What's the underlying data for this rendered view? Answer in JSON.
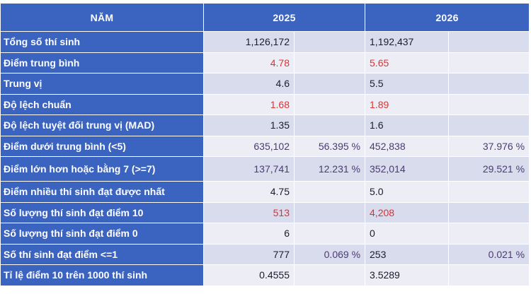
{
  "header": {
    "col_label": "NĂM",
    "col_2025": "2025",
    "col_2026": "2026"
  },
  "rows": [
    {
      "label": "Tổng số thí sinh",
      "v2025": "1,126,172",
      "p2025": "",
      "v2026": "1,192,437",
      "p2026": "",
      "highlight": false
    },
    {
      "label": "Điểm trung bình",
      "v2025": "4.78",
      "p2025": "",
      "v2026": "5.65",
      "p2026": "",
      "highlight": true
    },
    {
      "label": "Trung vị",
      "v2025": "4.6",
      "p2025": "",
      "v2026": "5.5",
      "p2026": "",
      "highlight": false
    },
    {
      "label": "Độ lệch chuẩn",
      "v2025": "1.68",
      "p2025": "",
      "v2026": "1.89",
      "p2026": "",
      "highlight": true
    },
    {
      "label": "Độ lệch tuyệt đối trung vị (MAD)",
      "v2025": "1.35",
      "p2025": "",
      "v2026": "1.6",
      "p2026": "",
      "highlight": false
    },
    {
      "label": "Điểm dưới trung bình (<5)",
      "v2025": "635,102",
      "p2025": "56.395 %",
      "v2026": "452,838",
      "p2026": "37.976 %",
      "highlight": false
    },
    {
      "label": "Điểm lớn hơn hoặc bằng 7 (>=7)",
      "v2025": "137,741",
      "p2025": "12.231 %",
      "v2026": "352,014",
      "p2026": "29.521 %",
      "highlight": false
    },
    {
      "label": "Điểm nhiều thí sinh đạt được nhất",
      "v2025": "4.75",
      "p2025": "",
      "v2026": "5.0",
      "p2026": "",
      "highlight": false
    },
    {
      "label": "Số lượng thí sinh đạt điểm 10",
      "v2025": "513",
      "p2025": "",
      "v2026": "4,208",
      "p2026": "",
      "highlight": true
    },
    {
      "label": "Số lượng thí sinh đạt điểm 0",
      "v2025": "6",
      "p2025": "",
      "v2026": "0",
      "p2026": "",
      "highlight": false
    },
    {
      "label": "Số thí sinh đạt điểm <=1",
      "v2025": "777",
      "p2025": "0.069 %",
      "v2026": "253",
      "p2026": "0.021 %",
      "highlight": false
    },
    {
      "label": "Tỉ lệ điểm 10 trên 1000 thí sinh",
      "v2025": "0.4555",
      "p2025": "",
      "v2026": "3.5289",
      "p2026": "",
      "highlight": false
    }
  ],
  "colors": {
    "header_bg": "#3b63c0",
    "highlight_text": "#e03131",
    "row_bg_a": "#d9dcec",
    "row_bg_b": "#ecedf5"
  }
}
